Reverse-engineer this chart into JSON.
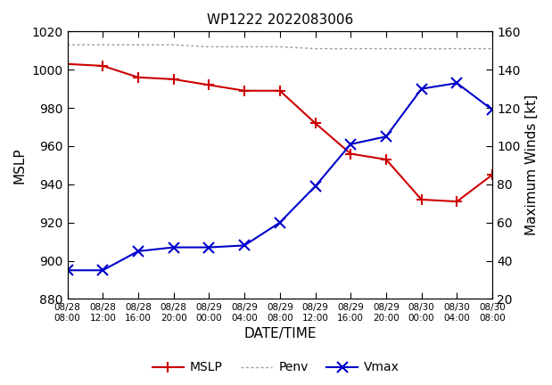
{
  "title": "WP1222 2022083006",
  "xlabel": "DATE/TIME",
  "ylabel_left": "MSLP",
  "ylabel_right": "Maximum Winds [kt]",
  "ylim_left": [
    880,
    1020
  ],
  "ylim_right": [
    20,
    160
  ],
  "tick_labels": [
    "08/28\n08:00",
    "08/28\n12:00",
    "08/28\n16:00",
    "08/28\n20:00",
    "08/29\n00:00",
    "08/29\n04:00",
    "08/29\n08:00",
    "08/29\n12:00",
    "08/29\n16:00",
    "08/29\n20:00",
    "08/30\n00:00",
    "08/30\n04:00",
    "08/30\n08:00"
  ],
  "mslp_x": [
    0,
    1,
    2,
    3,
    4,
    5,
    6,
    7,
    8,
    9,
    10,
    11,
    12
  ],
  "mslp_y": [
    1003,
    1002,
    996,
    995,
    992,
    989,
    989,
    972,
    956,
    953,
    932,
    931,
    945
  ],
  "penv_x": [
    0,
    1,
    2,
    3,
    4,
    5,
    6,
    7,
    8,
    9,
    10,
    11,
    12
  ],
  "penv_y": [
    1013,
    1013,
    1013,
    1013,
    1012,
    1012,
    1012,
    1011,
    1011,
    1011,
    1011,
    1011,
    1011
  ],
  "vmax_x": [
    0,
    1,
    2,
    3,
    4,
    5,
    6,
    7,
    8,
    9,
    10,
    11,
    12
  ],
  "vmax_y": [
    35,
    35,
    45,
    47,
    47,
    48,
    60,
    79,
    101,
    105,
    130,
    133,
    119
  ],
  "mslp_color": "#cc0000",
  "penv_color": "#999999",
  "vmax_color": "#0000cc",
  "background_color": "#ffffff",
  "yticks_left": [
    880,
    900,
    920,
    940,
    960,
    980,
    1000,
    1020
  ],
  "yticks_right": [
    20,
    40,
    60,
    80,
    100,
    120,
    140,
    160
  ]
}
